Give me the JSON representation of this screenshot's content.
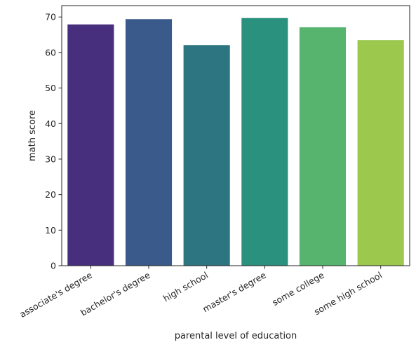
{
  "chart_data": {
    "type": "bar",
    "title": "",
    "xlabel": "parental level of education",
    "ylabel": "math score",
    "categories": [
      "associate's degree",
      "bachelor's degree",
      "high school",
      "master's degree",
      "some college",
      "some high school"
    ],
    "values": [
      67.9,
      69.4,
      62.1,
      69.7,
      67.1,
      63.5
    ],
    "colors": [
      "#472f7d",
      "#3b5a8c",
      "#2d7681",
      "#2a917e",
      "#57b46e",
      "#9bc84d"
    ],
    "ylim": [
      0,
      73.2
    ],
    "yticks": [
      0,
      10,
      20,
      30,
      40,
      50,
      60,
      70
    ],
    "grid": false,
    "legend": "none"
  }
}
